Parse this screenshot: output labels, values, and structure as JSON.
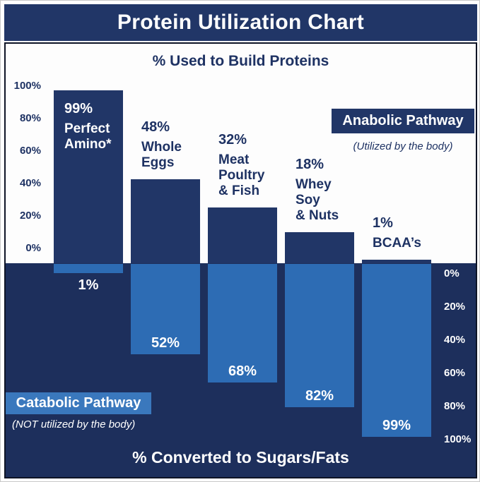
{
  "header": {
    "title": "Protein Utilization Chart"
  },
  "top_section": {
    "label": "% Used to Build Proteins"
  },
  "bottom_section": {
    "label": "% Converted to Sugars/Fats"
  },
  "legend": {
    "anabolic": {
      "label": "Anabolic Pathway",
      "sublabel": "(Utilized by the body)"
    },
    "catabolic": {
      "label": "Catabolic Pathway",
      "sublabel": "(NOT utilized by the body)"
    }
  },
  "axes": {
    "left_ticks": [
      "100%",
      "80%",
      "60%",
      "40%",
      "20%",
      "0%"
    ],
    "right_ticks": [
      "0%",
      "20%",
      "40%",
      "60%",
      "80%",
      "100%"
    ]
  },
  "colors": {
    "navy": "#213667",
    "navy_dark_bg": "#1d2f5c",
    "light_blue": "#2d6cb4",
    "catabolic_box_blue": "#3a78bd",
    "text_navy": "#1e3263",
    "frame": "#0e1426",
    "white": "#ffffff"
  },
  "chart_data": {
    "type": "bar",
    "title": "Protein Utilization Chart",
    "upper_axis_label": "% Used to Build Proteins",
    "lower_axis_label": "% Converted to Sugars/Fats",
    "categories": [
      "Perfect Amino*",
      "Whole Eggs",
      "Meat Poultry & Fish",
      "Whey Soy & Nuts",
      "BCAA’s"
    ],
    "series": [
      {
        "name": "Anabolic Pathway (Utilized by the body)",
        "values": [
          99,
          48,
          32,
          18,
          1
        ]
      },
      {
        "name": "Catabolic Pathway (NOT utilized by the body)",
        "values": [
          1,
          52,
          68,
          82,
          99
        ]
      }
    ],
    "value_unit": "%",
    "upper_axis_range": [
      0,
      100
    ],
    "lower_axis_range": [
      0,
      100
    ],
    "legend_position": "upper-right and lower-left boxes",
    "grid": false,
    "bars": [
      {
        "pct_label": "99%",
        "name_lines": [
          "Perfect",
          "Amino*"
        ],
        "bottom_pct_label": "1%",
        "label_position": "inside"
      },
      {
        "pct_label": "48%",
        "name_lines": [
          "Whole",
          "Eggs"
        ],
        "bottom_pct_label": "52%",
        "label_position": "above"
      },
      {
        "pct_label": "32%",
        "name_lines": [
          "Meat",
          "Poultry",
          "& Fish"
        ],
        "bottom_pct_label": "68%",
        "label_position": "above"
      },
      {
        "pct_label": "18%",
        "name_lines": [
          "Whey",
          "Soy",
          "& Nuts"
        ],
        "bottom_pct_label": "82%",
        "label_position": "above"
      },
      {
        "pct_label": "1%",
        "name_lines": [
          "BCAA’s"
        ],
        "bottom_pct_label": "99%",
        "label_position": "above"
      }
    ]
  }
}
